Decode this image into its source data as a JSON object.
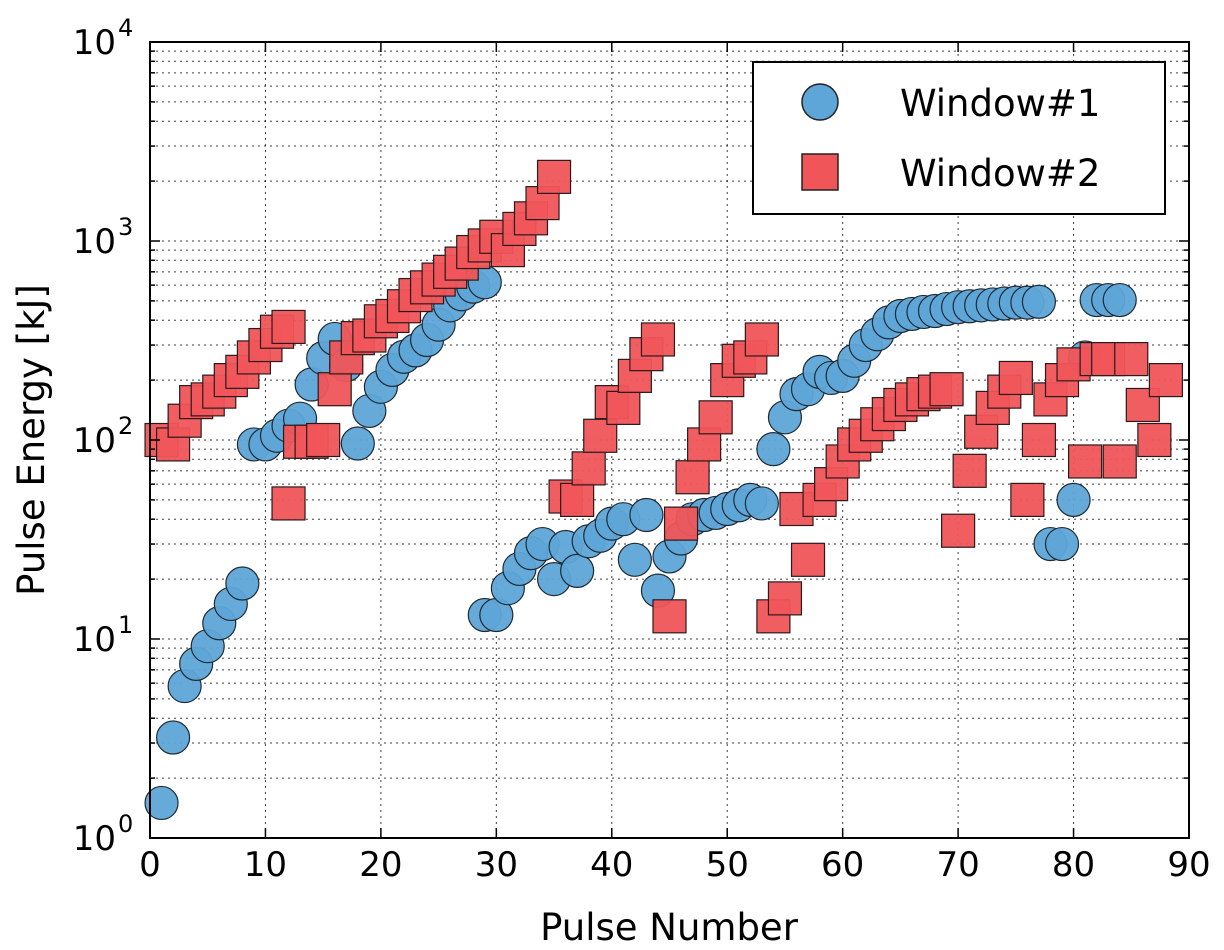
{
  "chart_data": {
    "type": "scatter",
    "title": "",
    "xlabel": "Pulse Number",
    "ylabel": "Pulse Energy [kJ]",
    "xlim": [
      0,
      90
    ],
    "ylim": [
      1,
      10000
    ],
    "yscale": "log",
    "grid": true,
    "legend_position": "top-right",
    "x_ticks": [
      "0",
      "10",
      "20",
      "30",
      "40",
      "50",
      "60",
      "70",
      "80",
      "90"
    ],
    "y_ticks": [
      {
        "base": "10",
        "exp": "0"
      },
      {
        "base": "10",
        "exp": "1"
      },
      {
        "base": "10",
        "exp": "2"
      },
      {
        "base": "10",
        "exp": "3"
      },
      {
        "base": "10",
        "exp": "4"
      }
    ],
    "series": [
      {
        "name": "Window#1",
        "marker": "circle",
        "color": "#5ea5d8",
        "points": [
          [
            1,
            1.5
          ],
          [
            2,
            3.2
          ],
          [
            3,
            5.8
          ],
          [
            4,
            7.5
          ],
          [
            5,
            9.2
          ],
          [
            6,
            12
          ],
          [
            7,
            15
          ],
          [
            8,
            19
          ],
          [
            9,
            95
          ],
          [
            10,
            95
          ],
          [
            11,
            105
          ],
          [
            12,
            118
          ],
          [
            13,
            128
          ],
          [
            14,
            190
          ],
          [
            15,
            258
          ],
          [
            16,
            322
          ],
          [
            17,
            238
          ],
          [
            18,
            96
          ],
          [
            19,
            140
          ],
          [
            20,
            185
          ],
          [
            21,
            225
          ],
          [
            22,
            262
          ],
          [
            23,
            282
          ],
          [
            24,
            318
          ],
          [
            25,
            380
          ],
          [
            26,
            475
          ],
          [
            27,
            540
          ],
          [
            28,
            590
          ],
          [
            29,
            620
          ],
          [
            29,
            13.2
          ],
          [
            30,
            13.2
          ],
          [
            31,
            18
          ],
          [
            32,
            22.5
          ],
          [
            33,
            27
          ],
          [
            34,
            30
          ],
          [
            35,
            20
          ],
          [
            36,
            29
          ],
          [
            37,
            22
          ],
          [
            38,
            31
          ],
          [
            39,
            33
          ],
          [
            40,
            38
          ],
          [
            41,
            40
          ],
          [
            42,
            25
          ],
          [
            43,
            42
          ],
          [
            44,
            17.5
          ],
          [
            45,
            26
          ],
          [
            46,
            32
          ],
          [
            47,
            40
          ],
          [
            48,
            42
          ],
          [
            49,
            43
          ],
          [
            50,
            45
          ],
          [
            51,
            47
          ],
          [
            52,
            50
          ],
          [
            53,
            48
          ],
          [
            54,
            90
          ],
          [
            55,
            130
          ],
          [
            56,
            170
          ],
          [
            57,
            180
          ],
          [
            58,
            220
          ],
          [
            59,
            205
          ],
          [
            60,
            210
          ],
          [
            61,
            250
          ],
          [
            62,
            300
          ],
          [
            63,
            340
          ],
          [
            64,
            390
          ],
          [
            65,
            420
          ],
          [
            66,
            430
          ],
          [
            67,
            440
          ],
          [
            68,
            445
          ],
          [
            69,
            455
          ],
          [
            70,
            465
          ],
          [
            71,
            470
          ],
          [
            72,
            475
          ],
          [
            73,
            480
          ],
          [
            74,
            485
          ],
          [
            75,
            490
          ],
          [
            76,
            490
          ],
          [
            77,
            495
          ],
          [
            78,
            30
          ],
          [
            79,
            30
          ],
          [
            80,
            50
          ],
          [
            81,
            260
          ],
          [
            82,
            505
          ],
          [
            83,
            505
          ],
          [
            84,
            505
          ]
        ]
      },
      {
        "name": "Window#2",
        "marker": "square",
        "color": "#f0555a",
        "points": [
          [
            1,
            100
          ],
          [
            2,
            95
          ],
          [
            3,
            125
          ],
          [
            4,
            155
          ],
          [
            5,
            160
          ],
          [
            6,
            175
          ],
          [
            7,
            200
          ],
          [
            8,
            220
          ],
          [
            9,
            260
          ],
          [
            10,
            300
          ],
          [
            11,
            350
          ],
          [
            12,
            370
          ],
          [
            12,
            48
          ],
          [
            13,
            98
          ],
          [
            14,
            98
          ],
          [
            15,
            100
          ],
          [
            16,
            180
          ],
          [
            17,
            260
          ],
          [
            18,
            325
          ],
          [
            19,
            335
          ],
          [
            20,
            395
          ],
          [
            21,
            420
          ],
          [
            22,
            470
          ],
          [
            23,
            535
          ],
          [
            24,
            585
          ],
          [
            25,
            640
          ],
          [
            26,
            700
          ],
          [
            27,
            770
          ],
          [
            28,
            880
          ],
          [
            29,
            950
          ],
          [
            30,
            1050
          ],
          [
            31,
            900
          ],
          [
            32,
            1150
          ],
          [
            33,
            1300
          ],
          [
            34,
            1550
          ],
          [
            35,
            2100
          ],
          [
            36,
            52
          ],
          [
            37,
            50
          ],
          [
            38,
            72
          ],
          [
            39,
            105
          ],
          [
            40,
            155
          ],
          [
            41,
            145
          ],
          [
            42,
            210
          ],
          [
            43,
            270
          ],
          [
            44,
            320
          ],
          [
            45,
            13
          ],
          [
            46,
            38
          ],
          [
            47,
            65
          ],
          [
            48,
            95
          ],
          [
            49,
            130
          ],
          [
            50,
            200
          ],
          [
            51,
            250
          ],
          [
            52,
            260
          ],
          [
            53,
            320
          ],
          [
            54,
            13
          ],
          [
            55,
            16
          ],
          [
            56,
            45
          ],
          [
            57,
            25
          ],
          [
            58,
            50
          ],
          [
            59,
            60
          ],
          [
            60,
            78
          ],
          [
            61,
            95
          ],
          [
            62,
            105
          ],
          [
            63,
            120
          ],
          [
            64,
            135
          ],
          [
            65,
            150
          ],
          [
            66,
            160
          ],
          [
            67,
            170
          ],
          [
            68,
            175
          ],
          [
            69,
            180
          ],
          [
            70,
            35
          ],
          [
            71,
            70
          ],
          [
            72,
            110
          ],
          [
            73,
            145
          ],
          [
            74,
            175
          ],
          [
            75,
            205
          ],
          [
            76,
            50
          ],
          [
            77,
            100
          ],
          [
            78,
            160
          ],
          [
            79,
            200
          ],
          [
            80,
            240
          ],
          [
            81,
            78
          ],
          [
            82,
            255
          ],
          [
            83,
            255
          ],
          [
            84,
            78
          ],
          [
            85,
            255
          ],
          [
            86,
            150
          ],
          [
            87,
            100
          ],
          [
            88,
            200
          ]
        ]
      }
    ]
  }
}
